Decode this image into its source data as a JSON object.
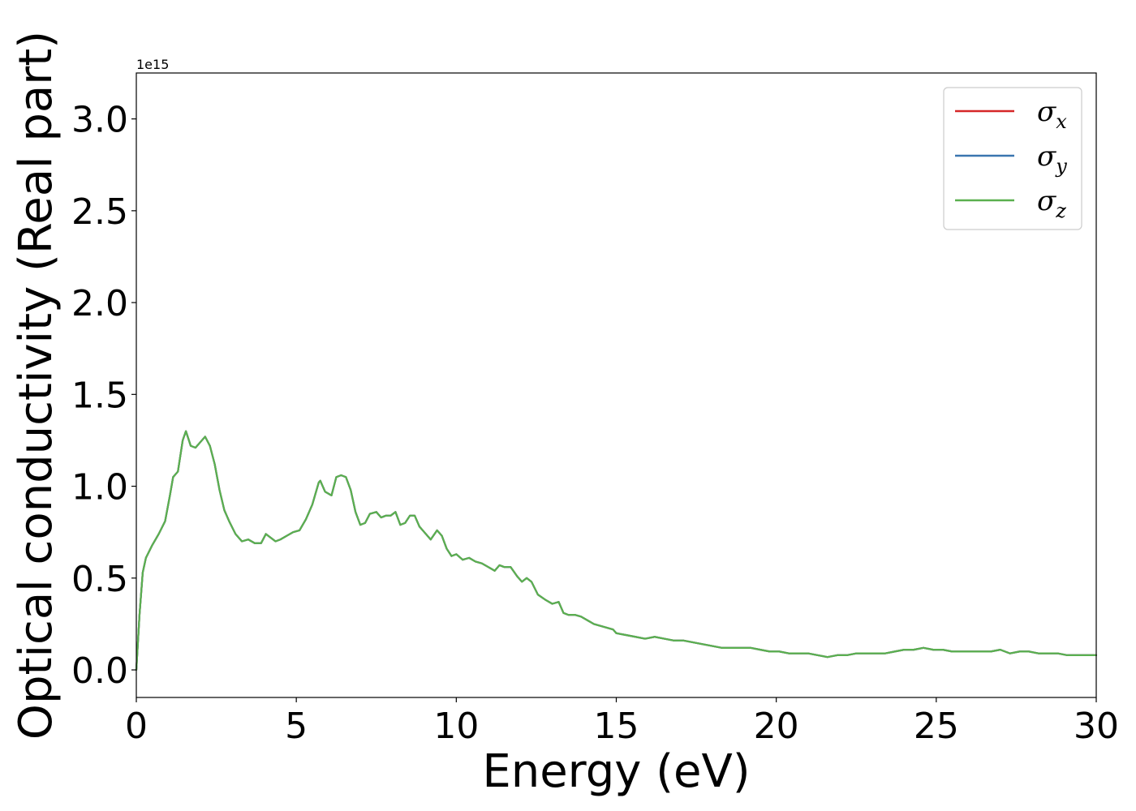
{
  "chart_data": {
    "type": "line",
    "xlabel": "Energy (eV)",
    "ylabel": "Optical conductivity (Real part)",
    "y_offset_label": "1e15",
    "y_multiplier": 1000000000000000.0,
    "xlim": [
      0,
      30
    ],
    "ylim": [
      -0.15,
      3.25
    ],
    "xticks": [
      0,
      5,
      10,
      15,
      20,
      25,
      30
    ],
    "xtick_labels": [
      "0",
      "5",
      "10",
      "15",
      "20",
      "25",
      "30"
    ],
    "yticks": [
      0.0,
      0.5,
      1.0,
      1.5,
      2.0,
      2.5,
      3.0
    ],
    "ytick_labels": [
      "0.0",
      "0.5",
      "1.0",
      "1.5",
      "2.0",
      "2.5",
      "3.0"
    ],
    "grid": false,
    "legend_position": "top-right",
    "x": [
      0,
      0.1,
      0.2,
      0.3,
      0.5,
      0.7,
      0.9,
      1.05,
      1.15,
      1.3,
      1.45,
      1.55,
      1.7,
      1.85,
      2.0,
      2.15,
      2.3,
      2.45,
      2.6,
      2.75,
      2.9,
      3.1,
      3.3,
      3.5,
      3.7,
      3.9,
      4.05,
      4.2,
      4.35,
      4.5,
      4.7,
      4.9,
      5.1,
      5.3,
      5.5,
      5.7,
      5.75,
      5.9,
      6.1,
      6.25,
      6.4,
      6.55,
      6.7,
      6.85,
      7.0,
      7.15,
      7.3,
      7.5,
      7.65,
      7.8,
      7.95,
      8.1,
      8.25,
      8.4,
      8.55,
      8.7,
      8.85,
      9.0,
      9.2,
      9.4,
      9.55,
      9.7,
      9.85,
      10.0,
      10.2,
      10.4,
      10.6,
      10.8,
      11.0,
      11.2,
      11.35,
      11.5,
      11.7,
      11.9,
      12.05,
      12.2,
      12.35,
      12.55,
      12.8,
      13.0,
      13.2,
      13.35,
      13.5,
      13.7,
      13.9,
      14.1,
      14.3,
      14.5,
      14.7,
      14.9,
      15.0,
      15.3,
      15.6,
      15.9,
      16.2,
      16.5,
      16.8,
      17.1,
      17.4,
      17.7,
      18.0,
      18.3,
      18.6,
      18.9,
      19.2,
      19.5,
      19.8,
      20.1,
      20.4,
      20.7,
      21.0,
      21.3,
      21.6,
      21.9,
      22.2,
      22.5,
      22.8,
      23.1,
      23.4,
      23.7,
      24.0,
      24.3,
      24.6,
      24.9,
      25.2,
      25.5,
      25.8,
      26.1,
      26.4,
      26.7,
      27.0,
      27.3,
      27.6,
      27.9,
      28.2,
      28.5,
      28.8,
      29.1,
      29.4,
      29.7,
      30.0
    ],
    "series": [
      {
        "name": "σx",
        "label_symbol": "σ",
        "label_sub": "x",
        "color": "#d62728",
        "values": [
          0.0,
          0.3,
          0.53,
          0.61,
          0.68,
          0.74,
          0.81,
          0.95,
          1.05,
          1.08,
          1.25,
          1.3,
          1.22,
          1.21,
          1.24,
          1.27,
          1.22,
          1.12,
          0.98,
          0.87,
          0.81,
          0.74,
          0.7,
          0.71,
          0.69,
          0.69,
          0.74,
          0.72,
          0.7,
          0.71,
          0.73,
          0.75,
          0.76,
          0.82,
          0.9,
          1.02,
          1.03,
          0.97,
          0.95,
          1.05,
          1.06,
          1.05,
          0.98,
          0.86,
          0.79,
          0.8,
          0.85,
          0.86,
          0.83,
          0.84,
          0.84,
          0.86,
          0.79,
          0.8,
          0.84,
          0.84,
          0.78,
          0.75,
          0.71,
          0.76,
          0.73,
          0.66,
          0.62,
          0.63,
          0.6,
          0.61,
          0.59,
          0.58,
          0.56,
          0.54,
          0.57,
          0.56,
          0.56,
          0.51,
          0.48,
          0.5,
          0.48,
          0.41,
          0.38,
          0.36,
          0.37,
          0.31,
          0.3,
          0.3,
          0.29,
          0.27,
          0.25,
          0.24,
          0.23,
          0.22,
          0.2,
          0.19,
          0.18,
          0.17,
          0.18,
          0.17,
          0.16,
          0.16,
          0.15,
          0.14,
          0.13,
          0.12,
          0.12,
          0.12,
          0.12,
          0.11,
          0.1,
          0.1,
          0.09,
          0.09,
          0.09,
          0.08,
          0.07,
          0.08,
          0.08,
          0.09,
          0.09,
          0.09,
          0.09,
          0.1,
          0.11,
          0.11,
          0.12,
          0.11,
          0.11,
          0.1,
          0.1,
          0.1,
          0.1,
          0.1,
          0.11,
          0.09,
          0.1,
          0.1,
          0.09,
          0.09,
          0.09,
          0.08,
          0.08,
          0.08,
          0.08
        ]
      },
      {
        "name": "σy",
        "label_symbol": "σ",
        "label_sub": "y",
        "color": "#3a76af",
        "values": [
          0.0,
          0.3,
          0.53,
          0.61,
          0.68,
          0.74,
          0.81,
          0.95,
          1.05,
          1.08,
          1.25,
          1.3,
          1.22,
          1.21,
          1.24,
          1.27,
          1.22,
          1.12,
          0.98,
          0.87,
          0.81,
          0.74,
          0.7,
          0.71,
          0.69,
          0.69,
          0.74,
          0.72,
          0.7,
          0.71,
          0.73,
          0.75,
          0.76,
          0.82,
          0.9,
          1.02,
          1.03,
          0.97,
          0.95,
          1.05,
          1.06,
          1.05,
          0.98,
          0.86,
          0.79,
          0.8,
          0.85,
          0.86,
          0.83,
          0.84,
          0.84,
          0.86,
          0.79,
          0.8,
          0.84,
          0.84,
          0.78,
          0.75,
          0.71,
          0.76,
          0.73,
          0.66,
          0.62,
          0.63,
          0.6,
          0.61,
          0.59,
          0.58,
          0.56,
          0.54,
          0.57,
          0.56,
          0.56,
          0.51,
          0.48,
          0.5,
          0.48,
          0.41,
          0.38,
          0.36,
          0.37,
          0.31,
          0.3,
          0.3,
          0.29,
          0.27,
          0.25,
          0.24,
          0.23,
          0.22,
          0.2,
          0.19,
          0.18,
          0.17,
          0.18,
          0.17,
          0.16,
          0.16,
          0.15,
          0.14,
          0.13,
          0.12,
          0.12,
          0.12,
          0.12,
          0.11,
          0.1,
          0.1,
          0.09,
          0.09,
          0.09,
          0.08,
          0.07,
          0.08,
          0.08,
          0.09,
          0.09,
          0.09,
          0.09,
          0.1,
          0.11,
          0.11,
          0.12,
          0.11,
          0.11,
          0.1,
          0.1,
          0.1,
          0.1,
          0.1,
          0.11,
          0.09,
          0.1,
          0.1,
          0.09,
          0.09,
          0.09,
          0.08,
          0.08,
          0.08,
          0.08
        ]
      },
      {
        "name": "σz",
        "label_symbol": "σ",
        "label_sub": "z",
        "color": "#5ab04f",
        "values": [
          0.0,
          0.3,
          0.53,
          0.61,
          0.68,
          0.74,
          0.81,
          0.95,
          1.05,
          1.08,
          1.25,
          1.3,
          1.22,
          1.21,
          1.24,
          1.27,
          1.22,
          1.12,
          0.98,
          0.87,
          0.81,
          0.74,
          0.7,
          0.71,
          0.69,
          0.69,
          0.74,
          0.72,
          0.7,
          0.71,
          0.73,
          0.75,
          0.76,
          0.82,
          0.9,
          1.02,
          1.03,
          0.97,
          0.95,
          1.05,
          1.06,
          1.05,
          0.98,
          0.86,
          0.79,
          0.8,
          0.85,
          0.86,
          0.83,
          0.84,
          0.84,
          0.86,
          0.79,
          0.8,
          0.84,
          0.84,
          0.78,
          0.75,
          0.71,
          0.76,
          0.73,
          0.66,
          0.62,
          0.63,
          0.6,
          0.61,
          0.59,
          0.58,
          0.56,
          0.54,
          0.57,
          0.56,
          0.56,
          0.51,
          0.48,
          0.5,
          0.48,
          0.41,
          0.38,
          0.36,
          0.37,
          0.31,
          0.3,
          0.3,
          0.29,
          0.27,
          0.25,
          0.24,
          0.23,
          0.22,
          0.2,
          0.19,
          0.18,
          0.17,
          0.18,
          0.17,
          0.16,
          0.16,
          0.15,
          0.14,
          0.13,
          0.12,
          0.12,
          0.12,
          0.12,
          0.11,
          0.1,
          0.1,
          0.09,
          0.09,
          0.09,
          0.08,
          0.07,
          0.08,
          0.08,
          0.09,
          0.09,
          0.09,
          0.09,
          0.1,
          0.11,
          0.11,
          0.12,
          0.11,
          0.11,
          0.1,
          0.1,
          0.1,
          0.1,
          0.1,
          0.11,
          0.09,
          0.1,
          0.1,
          0.09,
          0.09,
          0.09,
          0.08,
          0.08,
          0.08,
          0.08
        ]
      }
    ]
  }
}
